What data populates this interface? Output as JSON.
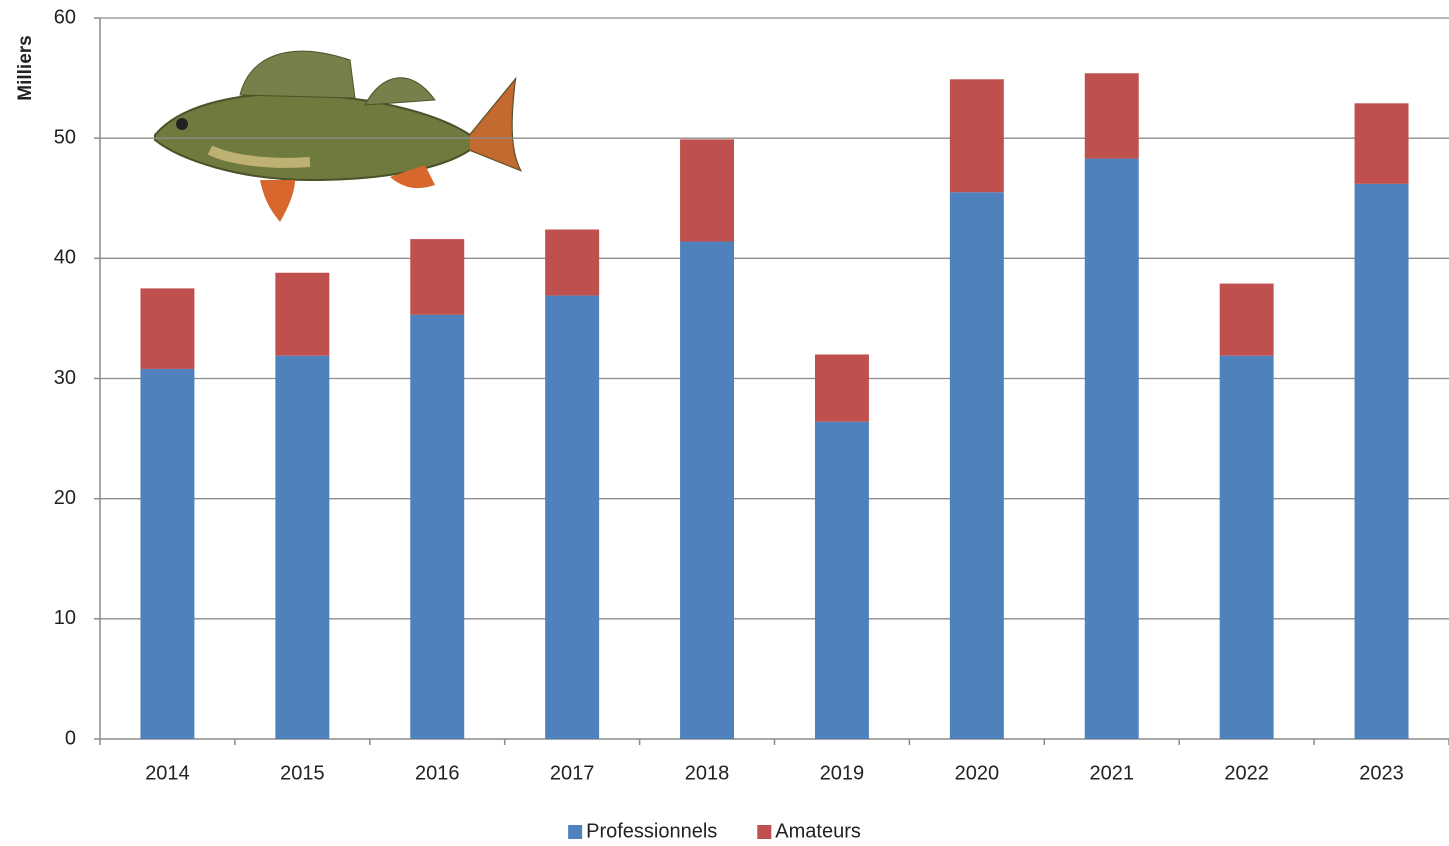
{
  "chart_data": {
    "type": "stacked_bar",
    "y_label": "Milliers",
    "categories": [
      "2014",
      "2015",
      "2016",
      "2017",
      "2018",
      "2019",
      "2020",
      "2021",
      "2022",
      "2023"
    ],
    "series": [
      {
        "name": "Professionnels",
        "color": "#4f81bd",
        "values": [
          30.8,
          31.9,
          35.3,
          36.9,
          41.4,
          26.4,
          45.5,
          48.3,
          31.9,
          46.2
        ]
      },
      {
        "name": "Amateurs",
        "color": "#c0504d",
        "values": [
          6.7,
          6.9,
          6.3,
          5.5,
          8.5,
          5.6,
          9.4,
          7.1,
          6.0,
          6.7
        ]
      }
    ],
    "ylim": [
      0,
      60
    ],
    "yticks": [
      0,
      10,
      20,
      30,
      40,
      50,
      60
    ],
    "grid": true,
    "legend": "bottom"
  }
}
